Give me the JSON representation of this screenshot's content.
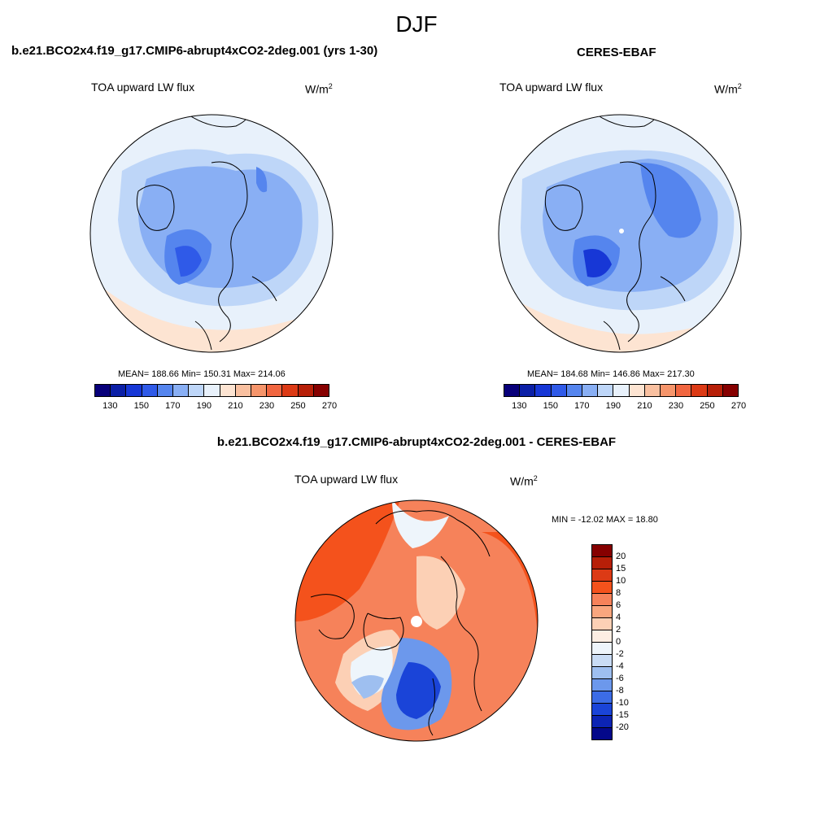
{
  "figure": {
    "title": "DJF"
  },
  "panels": [
    {
      "title": "b.e21.BCO2x4.f19_g17.CMIP6-abrupt4xCO2-2deg.001 (yrs 1-30)",
      "variable": "TOA upward LW flux",
      "units": "W/m",
      "units_sup": "2",
      "stats": "MEAN= 188.66  Min= 150.31  Max= 214.06"
    },
    {
      "title": "CERES-EBAF",
      "variable": "TOA upward LW flux",
      "units": "W/m",
      "units_sup": "2",
      "stats": "MEAN= 184.68  Min= 146.86  Max= 217.30"
    },
    {
      "title": "b.e21.BCO2x4.f19_g17.CMIP6-abrupt4xCO2-2deg.001 - CERES-EBAF",
      "variable": "TOA upward LW flux",
      "units": "W/m",
      "units_sup": "2",
      "stats": "MIN = -12.02 MAX =  18.80"
    }
  ],
  "abs_colorbar": {
    "colors": [
      "#08007a",
      "#0b1fa6",
      "#1737d6",
      "#2f5ae8",
      "#5585ee",
      "#89aff4",
      "#bed6f8",
      "#e8f1fb",
      "#fde4d2",
      "#f9c0a0",
      "#f6956b",
      "#f16640",
      "#dc3a15",
      "#b71f08",
      "#860000"
    ],
    "labels": [
      "130",
      "150",
      "170",
      "190",
      "210",
      "230",
      "250",
      "270"
    ]
  },
  "diff_colorbar": {
    "colors": [
      "#860000",
      "#b71f08",
      "#dc3a15",
      "#f4521c",
      "#f6825a",
      "#f9a67e",
      "#fcd0b5",
      "#fdeee3",
      "#eef5fb",
      "#c9dcf5",
      "#9ebff0",
      "#6c98ec",
      "#3c6ce6",
      "#1a44d8",
      "#0c24b4",
      "#04088a"
    ],
    "labels": [
      "20",
      "15",
      "10",
      "8",
      "6",
      "4",
      "2",
      "0",
      "-2",
      "-4",
      "-6",
      "-8",
      "-10",
      "-15",
      "-20"
    ]
  }
}
